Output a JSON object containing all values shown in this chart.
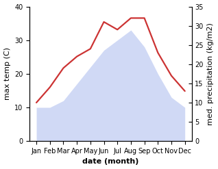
{
  "months": [
    "Jan",
    "Feb",
    "Mar",
    "Apr",
    "May",
    "Jun",
    "Jul",
    "Aug",
    "Sep",
    "Oct",
    "Nov",
    "Dec"
  ],
  "temperature": [
    10,
    10,
    12,
    17,
    22,
    27,
    30,
    33,
    28,
    20,
    13,
    10
  ],
  "precipitation": [
    10,
    14,
    19,
    22,
    24,
    31,
    29,
    32,
    32,
    23,
    17,
    13
  ],
  "temp_color_fill": "#aabbee",
  "precip_color": "#cc3333",
  "left_ylabel": "max temp (C)",
  "right_ylabel": "med. precipitation (kg/m2)",
  "xlabel": "date (month)",
  "ylim_left": [
    0,
    40
  ],
  "ylim_right": [
    0,
    35
  ],
  "yticks_left": [
    0,
    10,
    20,
    30,
    40
  ],
  "yticks_right": [
    0,
    5,
    10,
    15,
    20,
    25,
    30,
    35
  ],
  "label_fontsize": 8,
  "tick_fontsize": 7,
  "xlabel_fontsize": 8,
  "fill_alpha": 0.55
}
